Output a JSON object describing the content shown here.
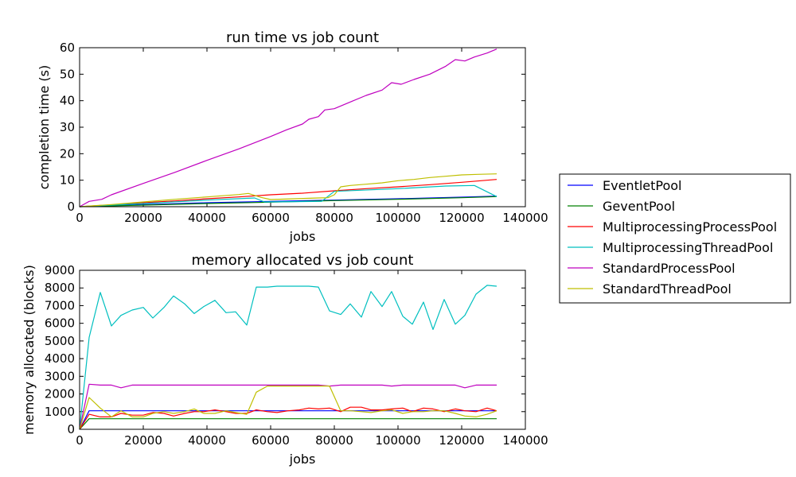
{
  "colors": {
    "EventletPool": "#0000ff",
    "GeventPool": "#008000",
    "MultiprocessingProcessPool": "#ff0000",
    "MultiprocessingThreadPool": "#00bfbf",
    "StandardProcessPool": "#bf00bf",
    "StandardThreadPool": "#bfbf00"
  },
  "legend": {
    "placement": "right, outside plots",
    "entries": [
      "EventletPool",
      "GeventPool",
      "MultiprocessingProcessPool",
      "MultiprocessingThreadPool",
      "StandardProcessPool",
      "StandardThreadPool"
    ]
  },
  "chart_data": [
    {
      "type": "line",
      "title": "run time vs job count",
      "xlabel": "jobs",
      "ylabel": "completion time (s)",
      "xlim": [
        0,
        140000
      ],
      "ylim": [
        0,
        60
      ],
      "xticks": [
        0,
        20000,
        40000,
        60000,
        80000,
        100000,
        120000,
        140000
      ],
      "yticks": [
        0,
        10,
        20,
        30,
        40,
        50,
        60
      ],
      "grid": false,
      "series": [
        {
          "name": "EventletPool",
          "x": [
            0,
            20000,
            40000,
            60000,
            80000,
            100000,
            120000,
            131000
          ],
          "y": [
            0,
            0.8,
            1.5,
            2.0,
            2.5,
            3.0,
            3.6,
            4.0
          ]
        },
        {
          "name": "GeventPool",
          "x": [
            0,
            20000,
            40000,
            60000,
            80000,
            100000,
            120000,
            131000
          ],
          "y": [
            0,
            0.6,
            1.2,
            1.7,
            2.3,
            2.8,
            3.4,
            3.8
          ]
        },
        {
          "name": "MultiprocessingProcessPool",
          "x": [
            0,
            10000,
            20000,
            30000,
            40000,
            50000,
            60000,
            70000,
            80000,
            90000,
            100000,
            110000,
            120000,
            131000
          ],
          "y": [
            0,
            0.7,
            1.5,
            2.2,
            3.0,
            3.7,
            4.5,
            5.1,
            6.0,
            6.8,
            7.5,
            8.3,
            9.2,
            10.3
          ]
        },
        {
          "name": "MultiprocessingThreadPool",
          "x": [
            0,
            20000,
            40000,
            55000,
            58000,
            76000,
            80000,
            100000,
            115000,
            124000,
            131000
          ],
          "y": [
            0,
            1.2,
            2.5,
            3.3,
            1.8,
            2.0,
            5.8,
            6.8,
            7.8,
            8.0,
            3.8
          ]
        },
        {
          "name": "StandardProcessPool",
          "x": [
            0,
            3000,
            7000,
            10000,
            20000,
            30000,
            40000,
            50000,
            60000,
            65000,
            70000,
            72000,
            75000,
            77000,
            80000,
            85000,
            90000,
            95000,
            98000,
            101000,
            105000,
            110000,
            115000,
            118000,
            121000,
            124000,
            128000,
            131000
          ],
          "y": [
            0,
            2.0,
            2.8,
            4.5,
            8.8,
            13.0,
            17.5,
            21.8,
            26.5,
            29.0,
            31.2,
            33.0,
            34.0,
            36.5,
            37.0,
            39.5,
            42.0,
            44.0,
            46.8,
            46.2,
            48.0,
            50.0,
            53.0,
            55.5,
            55.0,
            56.5,
            58.0,
            59.5
          ]
        },
        {
          "name": "StandardThreadPool",
          "x": [
            0,
            10000,
            20000,
            30000,
            40000,
            50000,
            53000,
            57000,
            60000,
            75000,
            78000,
            80000,
            82000,
            85000,
            90000,
            95000,
            100000,
            105000,
            110000,
            115000,
            120000,
            125000,
            131000
          ],
          "y": [
            0,
            0.8,
            1.8,
            2.8,
            3.7,
            4.6,
            5.0,
            3.5,
            2.7,
            3.3,
            3.4,
            4.5,
            7.5,
            8.0,
            8.5,
            9.0,
            9.8,
            10.3,
            11.0,
            11.5,
            12.0,
            12.2,
            12.4
          ]
        }
      ]
    },
    {
      "type": "line",
      "title": "memory allocated vs job count",
      "xlabel": "jobs",
      "ylabel": "memory allocated (blocks)",
      "xlim": [
        0,
        140000
      ],
      "ylim": [
        0,
        9000
      ],
      "xticks": [
        0,
        20000,
        40000,
        60000,
        80000,
        100000,
        120000,
        140000
      ],
      "yticks": [
        0,
        1000,
        2000,
        3000,
        4000,
        5000,
        6000,
        7000,
        8000,
        9000
      ],
      "grid": false,
      "series": [
        {
          "name": "EventletPool",
          "x": [
            0,
            3000,
            131000
          ],
          "y": [
            0,
            1050,
            1050
          ]
        },
        {
          "name": "GeventPool",
          "x": [
            0,
            3000,
            131000
          ],
          "y": [
            0,
            600,
            600
          ]
        },
        {
          "name": "MultiprocessingProcessPool",
          "x": [
            0,
            3000,
            6500,
            10000,
            13000,
            16500,
            20000,
            23000,
            26500,
            29500,
            33000,
            36000,
            39000,
            42500,
            46000,
            49000,
            52500,
            55500,
            59000,
            62000,
            65500,
            69000,
            72000,
            75000,
            78500,
            82000,
            85000,
            88500,
            91500,
            95000,
            98000,
            101500,
            104500,
            108000,
            111000,
            114500,
            118000,
            121000,
            124500,
            128000,
            131000
          ],
          "y": [
            0,
            850,
            700,
            700,
            900,
            800,
            800,
            950,
            900,
            750,
            900,
            1000,
            1000,
            1100,
            1000,
            900,
            900,
            1100,
            1000,
            950,
            1050,
            1100,
            1200,
            1150,
            1200,
            1000,
            1250,
            1250,
            1100,
            1100,
            1150,
            1200,
            1000,
            1200,
            1150,
            1000,
            1150,
            1050,
            1000,
            1200,
            1050
          ]
        },
        {
          "name": "MultiprocessingThreadPool",
          "x": [
            0,
            3000,
            6500,
            10000,
            13000,
            16500,
            20000,
            23000,
            26500,
            29500,
            33000,
            36000,
            39000,
            42500,
            46000,
            49000,
            52500,
            55500,
            59000,
            62000,
            65500,
            69000,
            72000,
            75000,
            78500,
            82000,
            85000,
            88500,
            91500,
            95000,
            98000,
            101500,
            104500,
            108000,
            111000,
            114500,
            118000,
            121000,
            124500,
            128000,
            131000
          ],
          "y": [
            0,
            5200,
            7750,
            5850,
            6450,
            6750,
            6900,
            6300,
            6900,
            7550,
            7100,
            6550,
            6950,
            7300,
            6600,
            6650,
            5900,
            8050,
            8050,
            8100,
            8100,
            8100,
            8100,
            8050,
            6700,
            6500,
            7100,
            6350,
            7800,
            6950,
            7800,
            6400,
            5950,
            7200,
            5650,
            7350,
            5950,
            6450,
            7650,
            8150,
            8100
          ]
        },
        {
          "name": "StandardProcessPool",
          "x": [
            0,
            3000,
            6500,
            10000,
            13000,
            16500,
            20000,
            23000,
            26500,
            29500,
            33000,
            36000,
            39000,
            42500,
            46000,
            49000,
            52500,
            55500,
            59000,
            62000,
            65500,
            69000,
            72000,
            75000,
            78500,
            82000,
            85000,
            88500,
            91500,
            95000,
            98000,
            101500,
            104500,
            108000,
            111000,
            114500,
            118000,
            121000,
            124500,
            128000,
            131000
          ],
          "y": [
            0,
            2550,
            2500,
            2500,
            2350,
            2500,
            2500,
            2500,
            2500,
            2500,
            2500,
            2500,
            2500,
            2500,
            2500,
            2500,
            2500,
            2500,
            2500,
            2500,
            2500,
            2500,
            2500,
            2500,
            2450,
            2500,
            2500,
            2500,
            2500,
            2500,
            2450,
            2500,
            2500,
            2500,
            2500,
            2500,
            2500,
            2350,
            2500,
            2500,
            2500
          ]
        },
        {
          "name": "StandardThreadPool",
          "x": [
            0,
            3000,
            6500,
            10000,
            13000,
            16500,
            20000,
            23000,
            26500,
            29500,
            33000,
            36000,
            39000,
            42500,
            46000,
            49000,
            52500,
            55500,
            59000,
            62000,
            65500,
            69000,
            72000,
            75000,
            78500,
            82000,
            85000,
            88500,
            91500,
            95000,
            98000,
            101500,
            104500,
            108000,
            111000,
            114500,
            118000,
            121000,
            124500,
            128000,
            131000
          ],
          "y": [
            0,
            1800,
            1200,
            700,
            1050,
            700,
            700,
            900,
            1000,
            900,
            1000,
            1150,
            900,
            900,
            1050,
            950,
            850,
            2100,
            2450,
            2450,
            2450,
            2450,
            2450,
            2450,
            2450,
            1050,
            1050,
            1000,
            950,
            1050,
            1100,
            900,
            1000,
            1000,
            1050,
            1050,
            900,
            750,
            700,
            850,
            1050
          ]
        }
      ]
    }
  ]
}
